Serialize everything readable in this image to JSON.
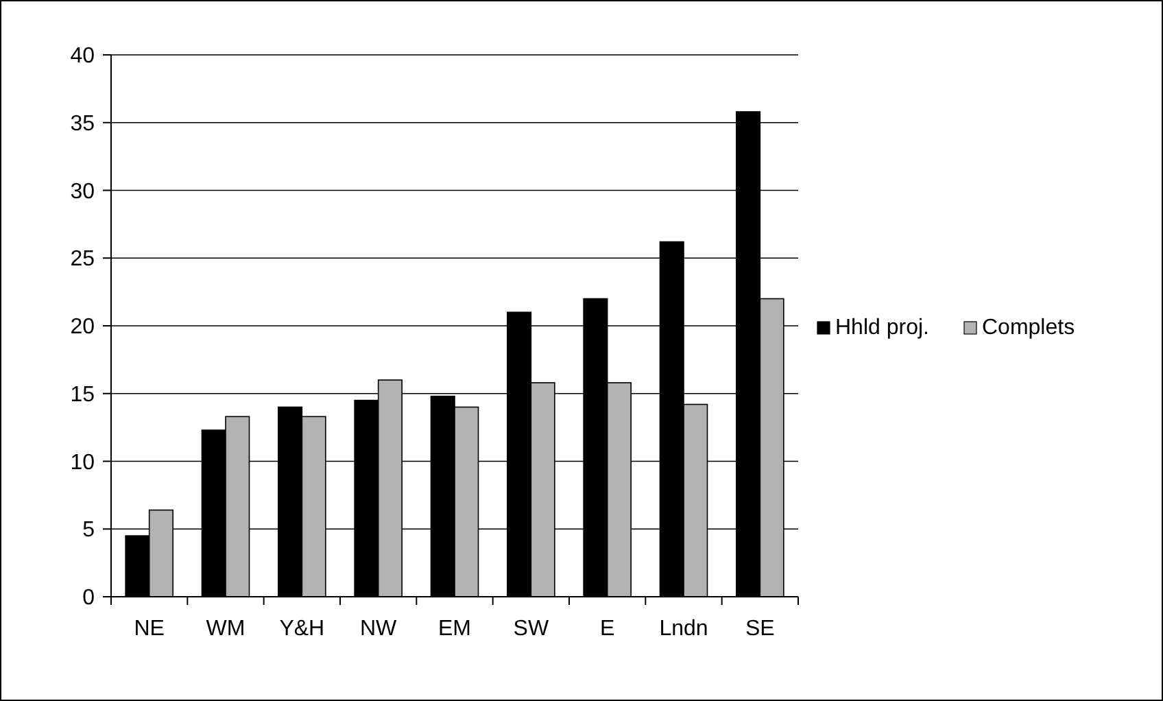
{
  "chart_data": {
    "type": "bar",
    "categories": [
      "NE",
      "WM",
      "Y&H",
      "NW",
      "EM",
      "SW",
      "E",
      "Lndn",
      "SE"
    ],
    "series": [
      {
        "name": "Hhld proj.",
        "color": "#000000",
        "values": [
          4.5,
          12.3,
          14.0,
          14.5,
          14.8,
          21.0,
          22.0,
          26.2,
          35.8
        ]
      },
      {
        "name": "Complets",
        "color": "#b2b2b2",
        "values": [
          6.4,
          13.3,
          13.3,
          16.0,
          14.0,
          15.8,
          15.8,
          14.2,
          22.0
        ]
      }
    ],
    "ylim": [
      0,
      40
    ],
    "yticks": [
      0,
      5,
      10,
      15,
      20,
      25,
      30,
      35,
      40
    ],
    "grid": "y",
    "legend": "right"
  }
}
